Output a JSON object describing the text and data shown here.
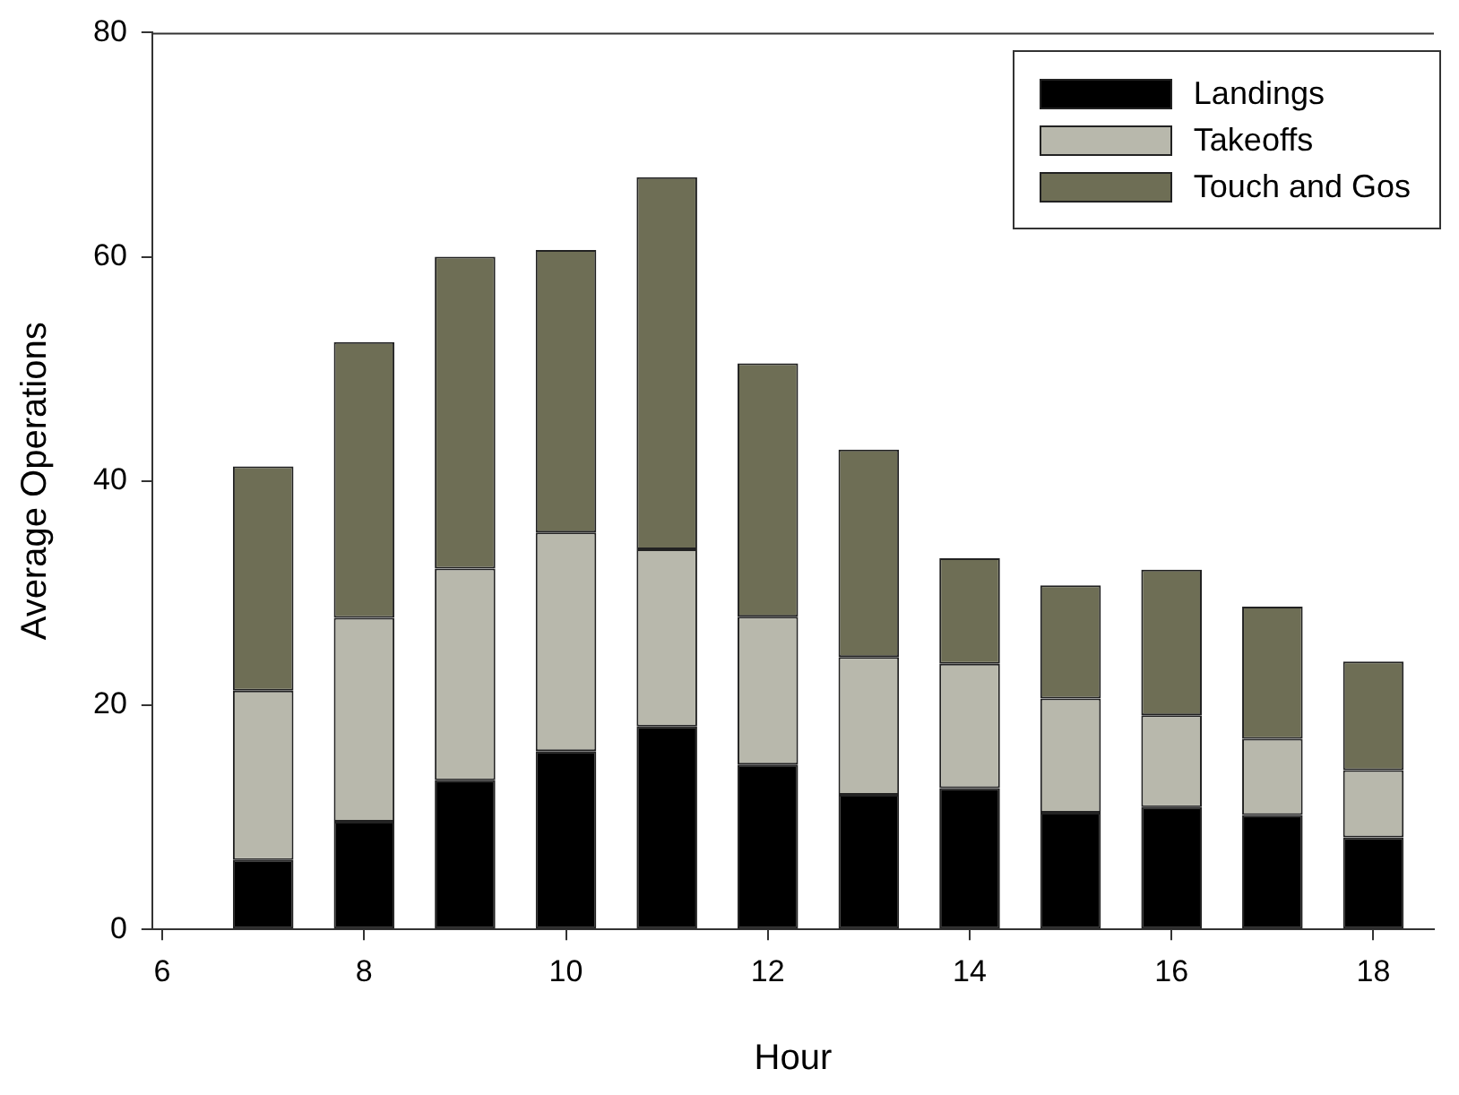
{
  "chart_data": {
    "type": "bar",
    "stacked": true,
    "xlabel": "Hour",
    "ylabel": "Average Operations",
    "x": [
      7,
      8,
      9,
      10,
      11,
      12,
      13,
      14,
      15,
      16,
      17,
      18
    ],
    "series": [
      {
        "name": "Landings",
        "color": "#000000",
        "values": [
          6.2,
          9.6,
          13.3,
          15.9,
          18.1,
          14.7,
          12.0,
          12.6,
          10.4,
          10.9,
          10.2,
          8.2
        ]
      },
      {
        "name": "Takeoffs",
        "color": "#b8b8ac",
        "values": [
          15.1,
          18.2,
          18.9,
          19.5,
          15.8,
          13.2,
          12.3,
          11.1,
          10.2,
          8.2,
          6.8,
          6.0
        ]
      },
      {
        "name": "Touch and Gos",
        "color": "#6e6e55",
        "values": [
          20.0,
          24.6,
          27.8,
          25.2,
          33.2,
          22.6,
          18.5,
          9.4,
          10.1,
          13.0,
          11.8,
          9.7
        ]
      }
    ],
    "xlim": [
      5.9,
      18.6
    ],
    "xticks": [
      6,
      8,
      10,
      12,
      14,
      16,
      18
    ],
    "ylim": [
      0,
      80
    ],
    "yticks": [
      0,
      20,
      40,
      60,
      80
    ],
    "grid": false,
    "legend": "top right"
  }
}
